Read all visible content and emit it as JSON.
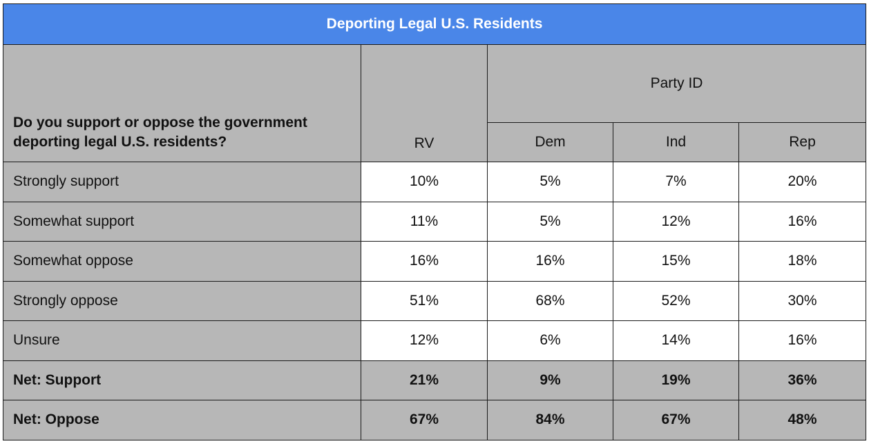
{
  "title": "Deporting Legal U.S. Residents",
  "question": "Do you support or oppose the government deporting legal U.S. residents?",
  "group_header": "Party ID",
  "columns": [
    "RV",
    "Dem",
    "Ind",
    "Rep"
  ],
  "rows": [
    {
      "label": "Strongly support",
      "values": [
        "10%",
        "5%",
        "7%",
        "20%"
      ]
    },
    {
      "label": "Somewhat support",
      "values": [
        "11%",
        "5%",
        "12%",
        "16%"
      ]
    },
    {
      "label": "Somewhat oppose",
      "values": [
        "16%",
        "16%",
        "15%",
        "18%"
      ]
    },
    {
      "label": "Strongly oppose",
      "values": [
        "51%",
        "68%",
        "52%",
        "30%"
      ]
    },
    {
      "label": "Unsure",
      "values": [
        "12%",
        "6%",
        "14%",
        "16%"
      ]
    },
    {
      "label": "Net: Support",
      "values": [
        "21%",
        "9%",
        "19%",
        "36%"
      ]
    },
    {
      "label": "Net: Oppose",
      "values": [
        "67%",
        "84%",
        "67%",
        "48%"
      ]
    }
  ],
  "colors": {
    "header_blue": "#4a86e8",
    "header_gray": "#b7b7b7"
  },
  "chart_data": {
    "type": "table",
    "title": "Deporting Legal U.S. Residents",
    "columns": [
      "RV",
      "Dem",
      "Ind",
      "Rep"
    ],
    "categories": [
      "Strongly support",
      "Somewhat support",
      "Somewhat oppose",
      "Strongly oppose",
      "Unsure",
      "Net: Support",
      "Net: Oppose"
    ],
    "series": [
      {
        "name": "RV",
        "values": [
          10,
          11,
          16,
          51,
          12,
          21,
          67
        ]
      },
      {
        "name": "Dem",
        "values": [
          5,
          5,
          16,
          68,
          6,
          9,
          84
        ]
      },
      {
        "name": "Ind",
        "values": [
          7,
          12,
          15,
          52,
          14,
          19,
          67
        ]
      },
      {
        "name": "Rep",
        "values": [
          20,
          16,
          18,
          30,
          16,
          36,
          48
        ]
      }
    ]
  }
}
